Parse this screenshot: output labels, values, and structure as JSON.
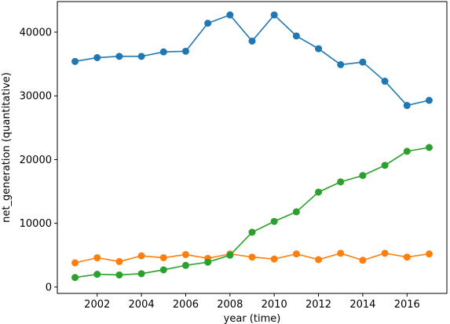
{
  "chart_data": {
    "type": "line",
    "xlabel": "year (time)",
    "ylabel": "net_generation (quantitative)",
    "xlim": [
      2000.2,
      2017.8
    ],
    "ylim": [
      -1000,
      44800
    ],
    "x_ticks": [
      2002,
      2004,
      2006,
      2008,
      2010,
      2012,
      2014,
      2016
    ],
    "y_ticks": [
      0,
      10000,
      20000,
      30000,
      40000
    ],
    "grid": false,
    "x": [
      2001,
      2002,
      2003,
      2004,
      2005,
      2006,
      2007,
      2008,
      2009,
      2010,
      2011,
      2012,
      2013,
      2014,
      2015,
      2016,
      2017
    ],
    "series": [
      {
        "color": "#1f77b4",
        "values": [
          35400,
          36000,
          36200,
          36200,
          36900,
          37000,
          41400,
          42700,
          38600,
          42700,
          39400,
          37400,
          34900,
          35300,
          32300,
          28500,
          29300
        ]
      },
      {
        "color": "#ff7f0e",
        "values": [
          3800,
          4600,
          4000,
          4900,
          4600,
          5100,
          4500,
          5200,
          4700,
          4400,
          5200,
          4300,
          5300,
          4200,
          5300,
          4700,
          5200
        ]
      },
      {
        "color": "#2ca02c",
        "values": [
          1500,
          2000,
          1900,
          2100,
          2700,
          3400,
          3900,
          5000,
          8600,
          10300,
          11800,
          14900,
          16500,
          17500,
          19100,
          21300,
          21900
        ]
      }
    ]
  }
}
